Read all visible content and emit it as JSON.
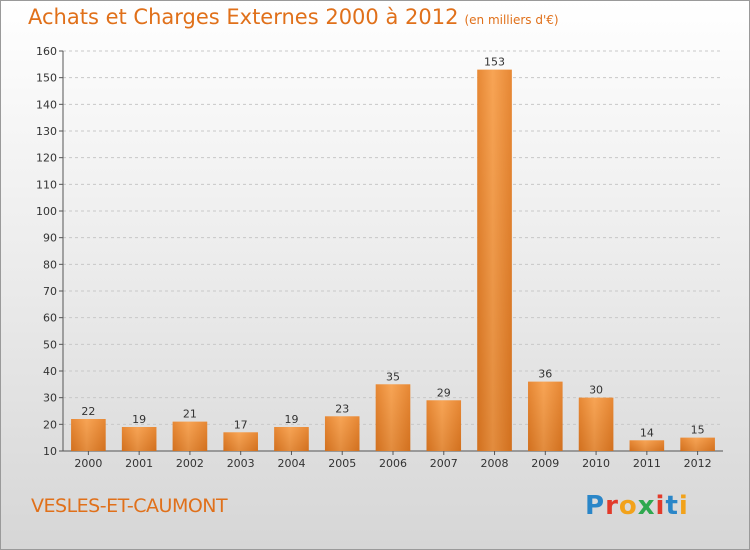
{
  "title": "Achats et Charges Externes 2000 à 2012",
  "subtitle": "(en milliers d'€)",
  "commune": "VESLES-ET-CAUMONT",
  "logo": [
    "P",
    "r",
    "o",
    "x",
    "i",
    "t",
    "i"
  ],
  "colors": {
    "title": "#e0701a",
    "bar_light": "#f8a85a",
    "bar_dark": "#d9741f",
    "logo": [
      "#2a86c8",
      "#e23a2a",
      "#f2a21a",
      "#2fa84f",
      "#e23a2a",
      "#2a86c8",
      "#f2a21a"
    ]
  },
  "chart_data": {
    "type": "bar",
    "categories": [
      "2000",
      "2001",
      "2002",
      "2003",
      "2004",
      "2005",
      "2006",
      "2007",
      "2008",
      "2009",
      "2010",
      "2011",
      "2012"
    ],
    "values": [
      22,
      19,
      21,
      17,
      19,
      23,
      35,
      29,
      153,
      36,
      30,
      14,
      15
    ],
    "ylim": [
      10,
      160
    ],
    "yticks": [
      10,
      20,
      30,
      40,
      50,
      60,
      70,
      80,
      90,
      100,
      110,
      120,
      130,
      140,
      150,
      160
    ],
    "grid": true
  }
}
